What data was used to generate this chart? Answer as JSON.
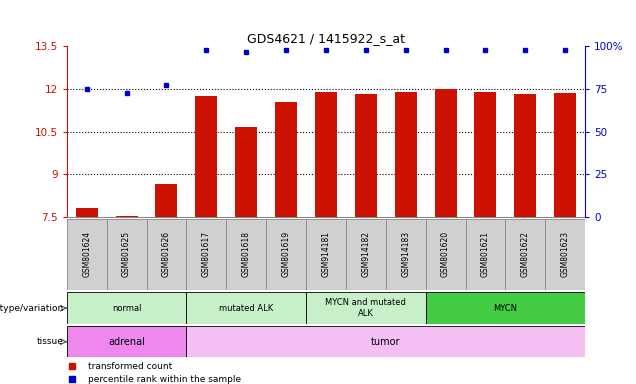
{
  "title": "GDS4621 / 1415922_s_at",
  "samples": [
    "GSM801624",
    "GSM801625",
    "GSM801626",
    "GSM801617",
    "GSM801618",
    "GSM801619",
    "GSM914181",
    "GSM914182",
    "GSM914183",
    "GSM801620",
    "GSM801621",
    "GSM801622",
    "GSM801623"
  ],
  "red_values": [
    7.8,
    7.55,
    8.65,
    11.75,
    10.65,
    11.55,
    11.9,
    11.8,
    11.9,
    12.0,
    11.9,
    11.8,
    11.85
  ],
  "blue_values": [
    12.0,
    11.85,
    12.15,
    13.35,
    13.3,
    13.35,
    13.35,
    13.35,
    13.35,
    13.35,
    13.35,
    13.35,
    13.35
  ],
  "ylim_left": [
    7.5,
    13.5
  ],
  "ylim_right": [
    0,
    100
  ],
  "yticks_left": [
    7.5,
    9.0,
    10.5,
    12.0,
    13.5
  ],
  "yticks_right": [
    0,
    25,
    50,
    75,
    100
  ],
  "ytick_labels_left": [
    "7.5",
    "9",
    "10.5",
    "12",
    "13.5"
  ],
  "ytick_labels_right": [
    "0",
    "25",
    "50",
    "75",
    "100%"
  ],
  "dotted_yticks": [
    9.0,
    10.5,
    12.0
  ],
  "genotype_groups": [
    {
      "label": "normal",
      "start": 0,
      "end": 3,
      "color": "#c8f0c8"
    },
    {
      "label": "mutated ALK",
      "start": 3,
      "end": 6,
      "color": "#c8f0c8"
    },
    {
      "label": "MYCN and mutated\nALK",
      "start": 6,
      "end": 9,
      "color": "#c8f0c8"
    },
    {
      "label": "MYCN",
      "start": 9,
      "end": 13,
      "color": "#44cc44"
    }
  ],
  "tissue_groups": [
    {
      "label": "adrenal",
      "start": 0,
      "end": 3,
      "color": "#ee88ee"
    },
    {
      "label": "tumor",
      "start": 3,
      "end": 13,
      "color": "#f4c0f4"
    }
  ],
  "bar_color": "#cc1100",
  "dot_color": "#0000cc",
  "bar_width": 0.55,
  "genotype_label": "genotype/variation",
  "tissue_label": "tissue",
  "legend_items": [
    {
      "label": "transformed count",
      "color": "#cc1100"
    },
    {
      "label": "percentile rank within the sample",
      "color": "#0000cc"
    }
  ],
  "sample_bg_color": "#d0d0d0",
  "sample_border_color": "#888888"
}
